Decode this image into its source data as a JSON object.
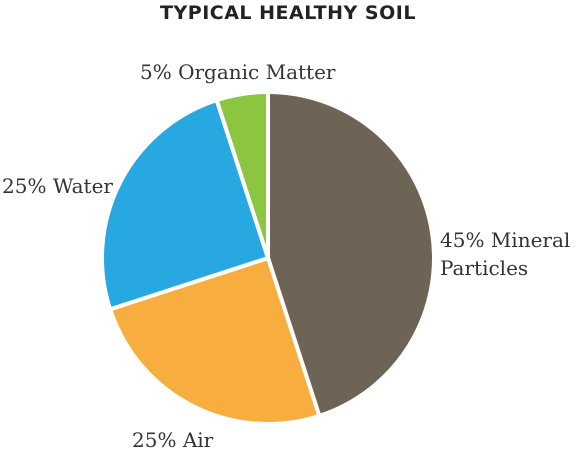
{
  "chart_data": {
    "type": "pie",
    "title": "TYPICAL HEALTHY SOIL",
    "categories": [
      "Mineral Particles",
      "Air",
      "Water",
      "Organic Matter"
    ],
    "values": [
      45,
      25,
      25,
      5
    ],
    "value_labels": [
      "45%",
      "25%",
      "25%",
      "5%"
    ],
    "colors": [
      "#6e6456",
      "#f7ae3f",
      "#27a8e1",
      "#8cc540"
    ]
  }
}
